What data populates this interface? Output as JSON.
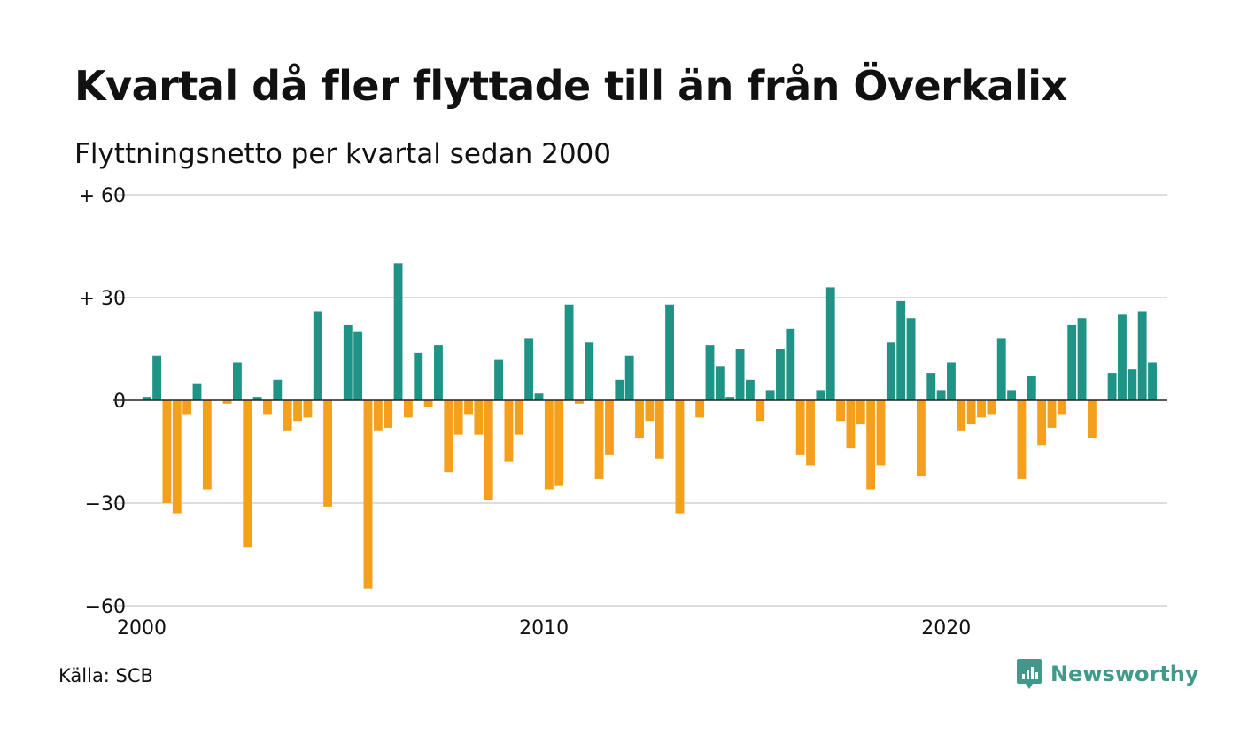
{
  "title": "Kvartal då fler flyttade till än från Överkalix",
  "subtitle": "Flyttningsnetto per kvartal sedan 2000",
  "source": "Källa: SCB",
  "brand": {
    "name": "Newsworthy",
    "color": "#3f9a8c",
    "icon": "newsworthy-logo-icon"
  },
  "colors": {
    "positive": "#1f9385",
    "negative": "#f5a01c",
    "grid": "#dddddd",
    "axis": "#222222"
  },
  "chart_data": {
    "type": "bar",
    "title": "Kvartal då fler flyttade till än från Överkalix",
    "subtitle": "Flyttningsnetto per kvartal sedan 2000",
    "xlabel": "",
    "ylabel": "",
    "ylim": [
      -60,
      60
    ],
    "yticks": [
      {
        "value": 60,
        "label": "+ 60"
      },
      {
        "value": 30,
        "label": "+ 30"
      },
      {
        "value": 0,
        "label": "0"
      },
      {
        "value": -30,
        "label": "−30"
      },
      {
        "value": -60,
        "label": "−60"
      }
    ],
    "xticks": [
      {
        "value": 2000,
        "label": "2000"
      },
      {
        "value": 2010,
        "label": "2010"
      },
      {
        "value": 2020,
        "label": "2020"
      }
    ],
    "xlim": [
      2000,
      2025.5
    ],
    "start_year": 2000,
    "grid": true,
    "values": [
      1,
      13,
      -30,
      -33,
      -4,
      5,
      -26,
      0,
      -1,
      11,
      -43,
      1,
      -4,
      6,
      -9,
      -6,
      -5,
      26,
      -31,
      0,
      22,
      20,
      -55,
      -9,
      -8,
      40,
      -5,
      14,
      -2,
      16,
      -21,
      -10,
      -4,
      -10,
      -29,
      12,
      -18,
      -10,
      18,
      2,
      -26,
      -25,
      28,
      -1,
      17,
      -23,
      -16,
      6,
      13,
      -11,
      -6,
      -17,
      28,
      -33,
      0,
      -5,
      16,
      10,
      1,
      15,
      6,
      -6,
      3,
      15,
      21,
      -16,
      -19,
      3,
      33,
      -6,
      -14,
      -7,
      -26,
      -19,
      17,
      29,
      24,
      -22,
      8,
      3,
      11,
      -9,
      -7,
      -5,
      -4,
      18,
      3,
      -23,
      7,
      -13,
      -8,
      -4,
      22,
      24,
      -11,
      0,
      8,
      25,
      9,
      26,
      11
    ]
  }
}
